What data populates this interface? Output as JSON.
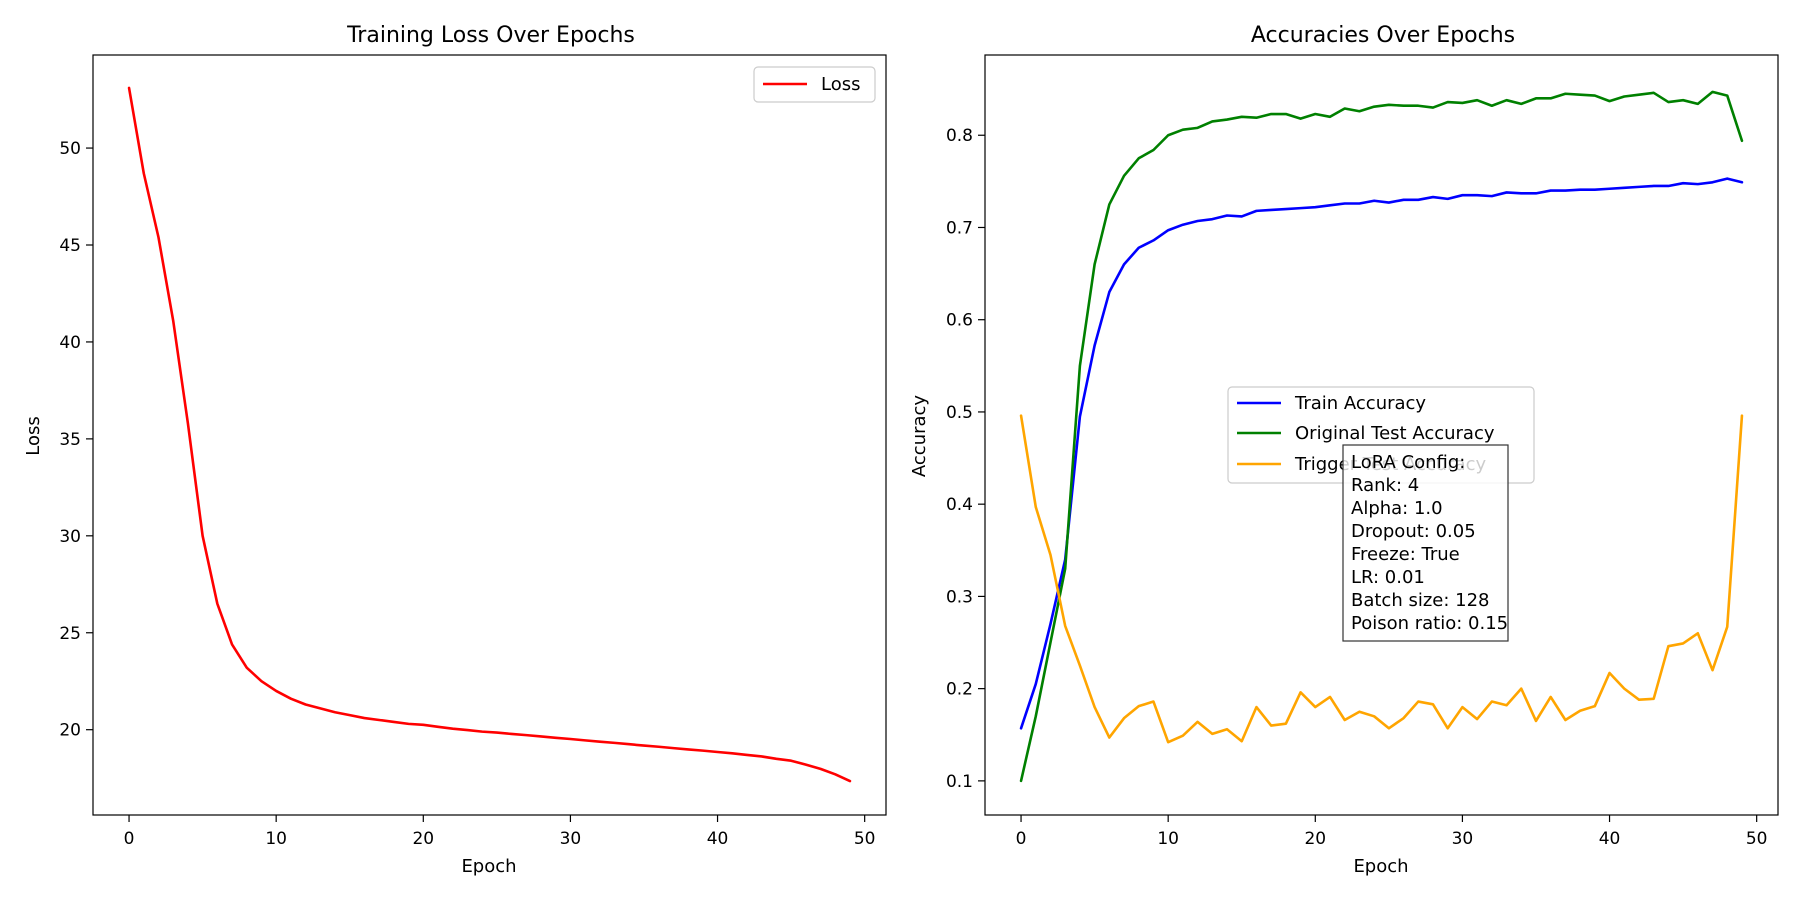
{
  "chart_data": [
    {
      "type": "line",
      "title": "Training Loss Over Epochs",
      "xlabel": "Epoch",
      "ylabel": "Loss",
      "xlim": [
        -2.45,
        51.45
      ],
      "ylim": [
        15.6,
        54.8
      ],
      "xticks": [
        0,
        10,
        20,
        30,
        40,
        50
      ],
      "yticks": [
        20,
        25,
        30,
        35,
        40,
        45,
        50
      ],
      "grid": false,
      "legend": "top-right",
      "series": [
        {
          "name": "Loss",
          "color": "#ff0000",
          "x": [
            0,
            1,
            2,
            3,
            4,
            5,
            6,
            7,
            8,
            9,
            10,
            11,
            12,
            13,
            14,
            15,
            16,
            17,
            18,
            19,
            20,
            21,
            22,
            23,
            24,
            25,
            26,
            27,
            28,
            29,
            30,
            31,
            32,
            33,
            34,
            35,
            36,
            37,
            38,
            39,
            40,
            41,
            42,
            43,
            44,
            45,
            46,
            47,
            48,
            49
          ],
          "y": [
            53.1,
            48.7,
            45.4,
            41.1,
            35.8,
            30.0,
            26.5,
            24.4,
            23.2,
            22.5,
            22.0,
            21.6,
            21.3,
            21.1,
            20.9,
            20.75,
            20.6,
            20.5,
            20.4,
            20.3,
            20.25,
            20.15,
            20.05,
            19.98,
            19.9,
            19.85,
            19.78,
            19.72,
            19.65,
            19.58,
            19.52,
            19.45,
            19.38,
            19.32,
            19.25,
            19.18,
            19.12,
            19.05,
            18.98,
            18.92,
            18.85,
            18.78,
            18.7,
            18.62,
            18.5,
            18.4,
            18.2,
            17.98,
            17.7,
            17.35
          ]
        }
      ]
    },
    {
      "type": "line",
      "title": "Accuracies Over Epochs",
      "xlabel": "Epoch",
      "ylabel": "Accuracy",
      "xlim": [
        -2.45,
        51.45
      ],
      "ylim": [
        0.063,
        0.887
      ],
      "xticks": [
        0,
        10,
        20,
        30,
        40,
        50
      ],
      "yticks": [
        0.1,
        0.2,
        0.3,
        0.4,
        0.5,
        0.6,
        0.7,
        0.8
      ],
      "grid": false,
      "legend": "center",
      "annotation": {
        "lines": [
          "LoRA Config:",
          "Rank: 4",
          "Alpha: 1.0",
          "Dropout: 0.05",
          "Freeze: True",
          "LR: 0.01",
          "Batch size: 128",
          "Poison ratio: 0.15"
        ]
      },
      "series": [
        {
          "name": "Train Accuracy",
          "color": "#0000ff",
          "x": [
            0,
            1,
            2,
            3,
            4,
            5,
            6,
            7,
            8,
            9,
            10,
            11,
            12,
            13,
            14,
            15,
            16,
            17,
            18,
            19,
            20,
            21,
            22,
            23,
            24,
            25,
            26,
            27,
            28,
            29,
            30,
            31,
            32,
            33,
            34,
            35,
            36,
            37,
            38,
            39,
            40,
            41,
            42,
            43,
            44,
            45,
            46,
            47,
            48,
            49
          ],
          "y": [
            0.157,
            0.205,
            0.27,
            0.34,
            0.495,
            0.572,
            0.63,
            0.66,
            0.678,
            0.686,
            0.697,
            0.703,
            0.707,
            0.709,
            0.713,
            0.712,
            0.718,
            0.719,
            0.72,
            0.721,
            0.722,
            0.724,
            0.726,
            0.726,
            0.729,
            0.727,
            0.73,
            0.73,
            0.733,
            0.731,
            0.735,
            0.735,
            0.734,
            0.738,
            0.737,
            0.737,
            0.74,
            0.74,
            0.741,
            0.741,
            0.742,
            0.743,
            0.744,
            0.745,
            0.745,
            0.748,
            0.747,
            0.749,
            0.753,
            0.749
          ]
        },
        {
          "name": "Original Test Accuracy",
          "color": "#008000",
          "x": [
            0,
            1,
            2,
            3,
            4,
            5,
            6,
            7,
            8,
            9,
            10,
            11,
            12,
            13,
            14,
            15,
            16,
            17,
            18,
            19,
            20,
            21,
            22,
            23,
            24,
            25,
            26,
            27,
            28,
            29,
            30,
            31,
            32,
            33,
            34,
            35,
            36,
            37,
            38,
            39,
            40,
            41,
            42,
            43,
            44,
            45,
            46,
            47,
            48,
            49
          ],
          "y": [
            0.1,
            0.17,
            0.25,
            0.33,
            0.55,
            0.66,
            0.725,
            0.756,
            0.775,
            0.784,
            0.8,
            0.806,
            0.808,
            0.815,
            0.817,
            0.82,
            0.819,
            0.823,
            0.823,
            0.818,
            0.823,
            0.82,
            0.829,
            0.826,
            0.831,
            0.833,
            0.832,
            0.832,
            0.83,
            0.836,
            0.835,
            0.838,
            0.832,
            0.838,
            0.834,
            0.84,
            0.84,
            0.845,
            0.844,
            0.843,
            0.837,
            0.842,
            0.844,
            0.846,
            0.836,
            0.838,
            0.834,
            0.847,
            0.843,
            0.794
          ]
        },
        {
          "name": "Trigger Test Accuracy",
          "color": "#ffa500",
          "x": [
            0,
            1,
            2,
            3,
            4,
            5,
            6,
            7,
            8,
            9,
            10,
            11,
            12,
            13,
            14,
            15,
            16,
            17,
            18,
            19,
            20,
            21,
            22,
            23,
            24,
            25,
            26,
            27,
            28,
            29,
            30,
            31,
            32,
            33,
            34,
            35,
            36,
            37,
            38,
            39,
            40,
            41,
            42,
            43,
            44,
            45,
            46,
            47,
            48,
            49
          ],
          "y": [
            0.496,
            0.397,
            0.345,
            0.268,
            0.225,
            0.18,
            0.147,
            0.168,
            0.181,
            0.186,
            0.142,
            0.149,
            0.164,
            0.151,
            0.156,
            0.143,
            0.18,
            0.16,
            0.162,
            0.196,
            0.18,
            0.191,
            0.166,
            0.175,
            0.17,
            0.157,
            0.168,
            0.186,
            0.183,
            0.157,
            0.18,
            0.167,
            0.186,
            0.182,
            0.2,
            0.165,
            0.191,
            0.166,
            0.176,
            0.181,
            0.217,
            0.2,
            0.188,
            0.189,
            0.246,
            0.249,
            0.26,
            0.22,
            0.267,
            0.496
          ]
        }
      ]
    }
  ]
}
